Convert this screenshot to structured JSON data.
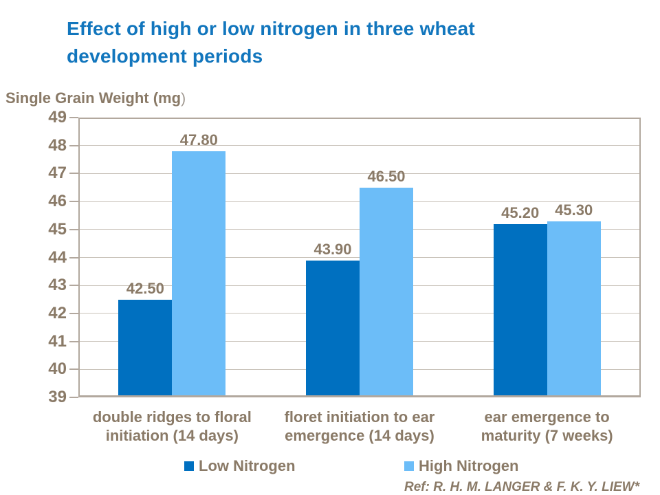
{
  "title": {
    "text": "Effect of high or low nitrogen in three wheat development periods",
    "lines": "Effect of high or low nitrogen in three wheat\ndevelopment periods",
    "color": "#1276BD"
  },
  "y_axis": {
    "label_bold": "Single Grain Weight (mg",
    "label_paren": ")"
  },
  "chart_data": {
    "type": "bar",
    "title": "Effect of high or low nitrogen in three wheat development periods",
    "xlabel": "",
    "ylabel": "Single Grain Weight (mg)",
    "ylim": [
      39,
      49
    ],
    "yticks": [
      "39",
      "40",
      "41",
      "42",
      "43",
      "44",
      "45",
      "46",
      "47",
      "48",
      "49"
    ],
    "grid": true,
    "legend_position": "bottom",
    "categories": [
      "double ridges to floral initiation (14 days)",
      "floret initiation to ear emergence (14 days)",
      "ear emergence to maturity (7 weeks)"
    ],
    "categories_lines": [
      "double ridges to floral\ninitiation (14 days)",
      "floret initiation to ear\nemergence (14 days)",
      "ear emergence to\nmaturity (7 weeks)"
    ],
    "series": [
      {
        "name": "Low Nitrogen",
        "color": "#0070C0",
        "values": [
          42.5,
          43.9,
          45.2
        ],
        "value_labels": [
          "42.50",
          "43.90",
          "45.20"
        ]
      },
      {
        "name": "High Nitrogen",
        "color": "#6CBDF8",
        "values": [
          47.8,
          46.5,
          45.3
        ],
        "value_labels": [
          "47.80",
          "46.50",
          "45.30"
        ]
      }
    ]
  },
  "legend": {
    "items": [
      {
        "label": "Low Nitrogen",
        "color": "#0070C0"
      },
      {
        "label": "High Nitrogen",
        "color": "#6CBDF8"
      }
    ]
  },
  "footer": {
    "ref": "Ref: R. H. M. LANGER & F. K. Y. LIEW*"
  },
  "colors": {
    "title_blue": "#1276BD",
    "text_brown": "#8A7A67",
    "axis_line": "#B2A89E",
    "gridline": "#C9C2B9",
    "low_nitrogen": "#0070C0",
    "high_nitrogen": "#6CBDF8",
    "background": "#FFFFFF"
  }
}
